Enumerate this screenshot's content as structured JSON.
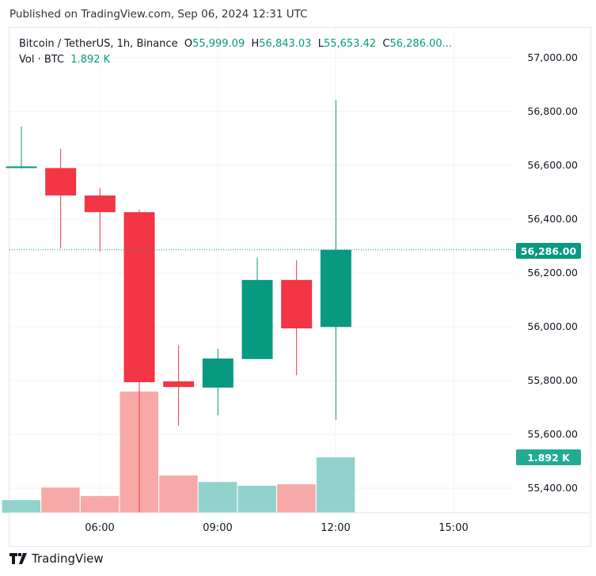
{
  "published": "Published on TradingView.com, Sep 06, 2024 12:31 UTC",
  "legend": {
    "symbol": "Bitcoin / TetherUS, 1h, Binance",
    "o_label": "O",
    "o": "55,999.09",
    "h_label": "H",
    "h": "56,843.03",
    "l_label": "L",
    "l": "55,653.42",
    "c_label": "C",
    "c": "56,286.00...",
    "vol_label": "Vol · BTC",
    "vol": "1.892 K"
  },
  "last_price_tag": "56,286.00",
  "last_volume_tag": "1.892 K",
  "logo_text": "TradingView",
  "colors": {
    "up": "#089981",
    "down": "#f23645",
    "vol_up": "#92d2cc",
    "vol_down": "#f7a9a7"
  },
  "chart_data": {
    "type": "candlestick",
    "x": [
      "04:00",
      "05:00",
      "06:00",
      "07:00",
      "08:00",
      "09:00",
      "10:00",
      "11:00",
      "12:00"
    ],
    "open": [
      56590,
      56590,
      56488,
      56426,
      55797,
      55774,
      55880,
      56174,
      55999.09
    ],
    "high": [
      56745,
      56662,
      56515,
      56435,
      55932,
      55918,
      56256,
      56247,
      56843.03
    ],
    "low": [
      56588,
      56291,
      56280,
      55310,
      55632,
      55671,
      55880,
      55820,
      55653.42
    ],
    "close": [
      56596,
      56488,
      56426,
      55794,
      55776,
      55882,
      56174,
      55994,
      56286.0
    ],
    "volume_k": [
      0.43,
      0.86,
      0.57,
      4.14,
      1.27,
      1.05,
      0.92,
      0.97,
      1.892
    ],
    "x_ticks": [
      "06:00",
      "09:00",
      "12:00",
      "15:00"
    ],
    "y_ticks": [
      "57,000.00",
      "56,800.00",
      "56,600.00",
      "56,400.00",
      "56,200.00",
      "56,000.00",
      "55,800.00",
      "55,600.00",
      "55,400.00"
    ],
    "y_tick_values": [
      57000,
      56800,
      56600,
      56400,
      56200,
      56000,
      55800,
      55600,
      55400
    ],
    "ylim": [
      55300,
      57100
    ]
  }
}
